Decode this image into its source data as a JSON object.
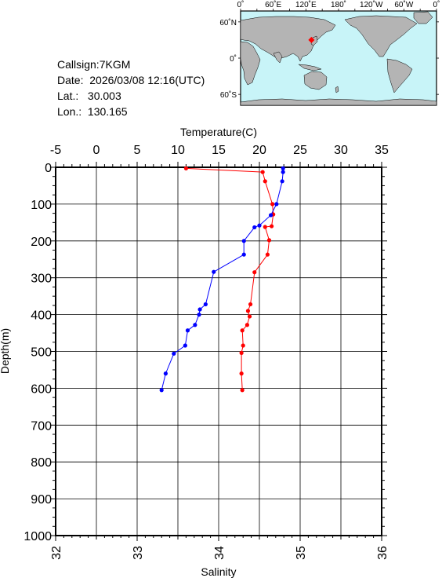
{
  "info": {
    "callsign": "Callsign:7KGM",
    "date": "Date:  2026/03/08 12:16(UTC)",
    "lat": "Lat.:   30.003",
    "lon": "Lon.:  130.165"
  },
  "map": {
    "lon_labels": [
      "0˚",
      "60˚E",
      "120˚E",
      "180˚",
      "120˚W",
      "60˚W",
      "0˚"
    ],
    "lat_labels": [
      "60˚N",
      "0˚",
      "60˚S"
    ],
    "station": {
      "lat": 30.003,
      "lon": 130.165
    },
    "colors": {
      "ocean": "#c8f4f8",
      "land": "#b4b4b4",
      "marker": "#ff0000"
    }
  },
  "chart_data": {
    "type": "line",
    "xlabel_top": "Temperature(C)",
    "xlabel_bottom": "Salinity",
    "ylabel": "Depth(m)",
    "temperature_axis": {
      "range": [
        -5,
        35
      ],
      "ticks": [
        "-5",
        "0",
        "5",
        "10",
        "15",
        "20",
        "25",
        "30",
        "35"
      ]
    },
    "salinity_axis": {
      "range": [
        32,
        36
      ],
      "ticks": [
        "32",
        "33",
        "34",
        "35",
        "36"
      ]
    },
    "depth_axis": {
      "range": [
        0,
        1000
      ],
      "ticks": [
        "0",
        "100",
        "200",
        "300",
        "400",
        "500",
        "600",
        "700",
        "800",
        "900",
        "1000"
      ],
      "inverted": true
    },
    "grid": true,
    "series": [
      {
        "quantity": "temperature",
        "color": "#ff0000",
        "depth": [
          3,
          13,
          38,
          100,
          128,
          160,
          162,
          198,
          237,
          285,
          372,
          390,
          405,
          428,
          443,
          484,
          504,
          560,
          605
        ],
        "values": [
          11.0,
          20.4,
          20.7,
          21.6,
          21.7,
          21.5,
          20.7,
          21.2,
          21.0,
          19.4,
          18.9,
          18.6,
          18.8,
          18.5,
          17.9,
          18.0,
          17.8,
          17.8,
          17.9
        ]
      },
      {
        "quantity": "salinity",
        "color": "#0000ff",
        "depth": [
          3,
          13,
          38,
          100,
          130,
          158,
          163,
          200,
          237,
          284,
          372,
          386,
          400,
          428,
          443,
          484,
          506,
          560,
          605
        ],
        "values": [
          34.79,
          34.79,
          34.78,
          34.71,
          34.64,
          34.5,
          34.44,
          34.31,
          34.31,
          33.94,
          33.84,
          33.77,
          33.76,
          33.71,
          33.62,
          33.59,
          33.45,
          33.35,
          33.3
        ]
      }
    ]
  }
}
